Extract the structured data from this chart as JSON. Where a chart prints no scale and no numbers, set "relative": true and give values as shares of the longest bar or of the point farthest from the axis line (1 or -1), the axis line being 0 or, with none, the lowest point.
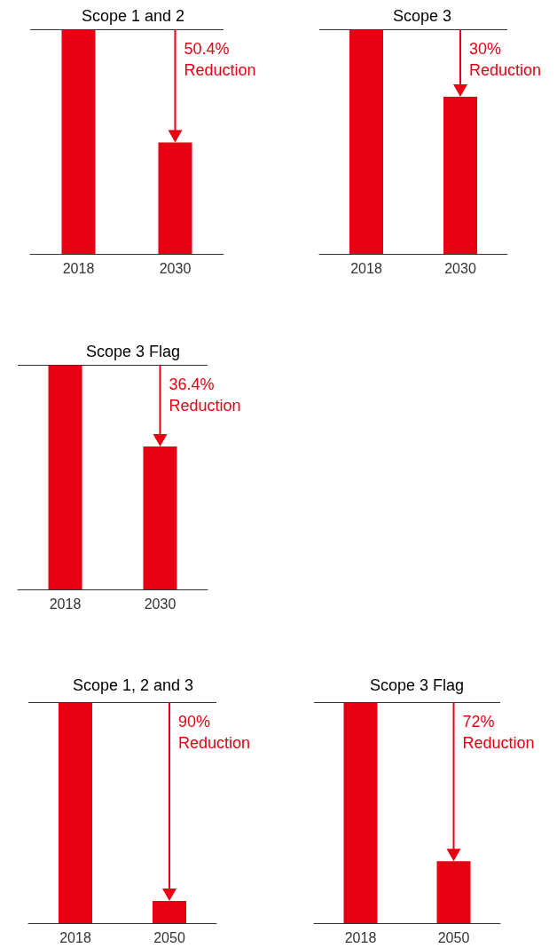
{
  "chart_data": [
    {
      "type": "bar",
      "title": "Scope 1 and 2",
      "categories": [
        "2018",
        "2030"
      ],
      "values": [
        1,
        0.496
      ],
      "color": "#e60012",
      "relative": true,
      "ref_lines": [
        {
          "axis": "y",
          "value": 1
        }
      ],
      "annotations": [
        {
          "text": "50.4% Reduction",
          "x": "2030",
          "y": 1
        }
      ]
    },
    {
      "type": "bar",
      "title": "Scope 3",
      "categories": [
        "2018",
        "2030"
      ],
      "values": [
        1,
        0.7
      ],
      "color": "#e60012",
      "relative": true,
      "ref_lines": [
        {
          "axis": "y",
          "value": 1
        }
      ],
      "annotations": [
        {
          "text": "30% Reduction",
          "x": "2030",
          "y": 1
        }
      ]
    },
    {
      "type": "bar",
      "title": "Scope 3 Flag",
      "categories": [
        "2018",
        "2030"
      ],
      "values": [
        1,
        0.636
      ],
      "color": "#e60012",
      "relative": true,
      "ref_lines": [
        {
          "axis": "y",
          "value": 1
        }
      ],
      "annotations": [
        {
          "text": "36.4% Reduction",
          "x": "2030",
          "y": 1
        }
      ]
    },
    {
      "type": "bar",
      "title": "Scope 1, 2 and 3",
      "categories": [
        "2018",
        "2050"
      ],
      "values": [
        1,
        0.1
      ],
      "color": "#e60012",
      "relative": true,
      "ref_lines": [
        {
          "axis": "y",
          "value": 1
        }
      ],
      "annotations": [
        {
          "text": "90% Reduction",
          "x": "2050",
          "y": 1
        }
      ]
    },
    {
      "type": "bar",
      "title": "Scope 3 Flag",
      "categories": [
        "2018",
        "2050"
      ],
      "values": [
        1,
        0.28
      ],
      "color": "#e60012",
      "relative": true,
      "ref_lines": [
        {
          "axis": "y",
          "value": 1
        }
      ],
      "annotations": [
        {
          "text": "72% Reduction",
          "x": "2050",
          "y": 1
        }
      ]
    }
  ]
}
